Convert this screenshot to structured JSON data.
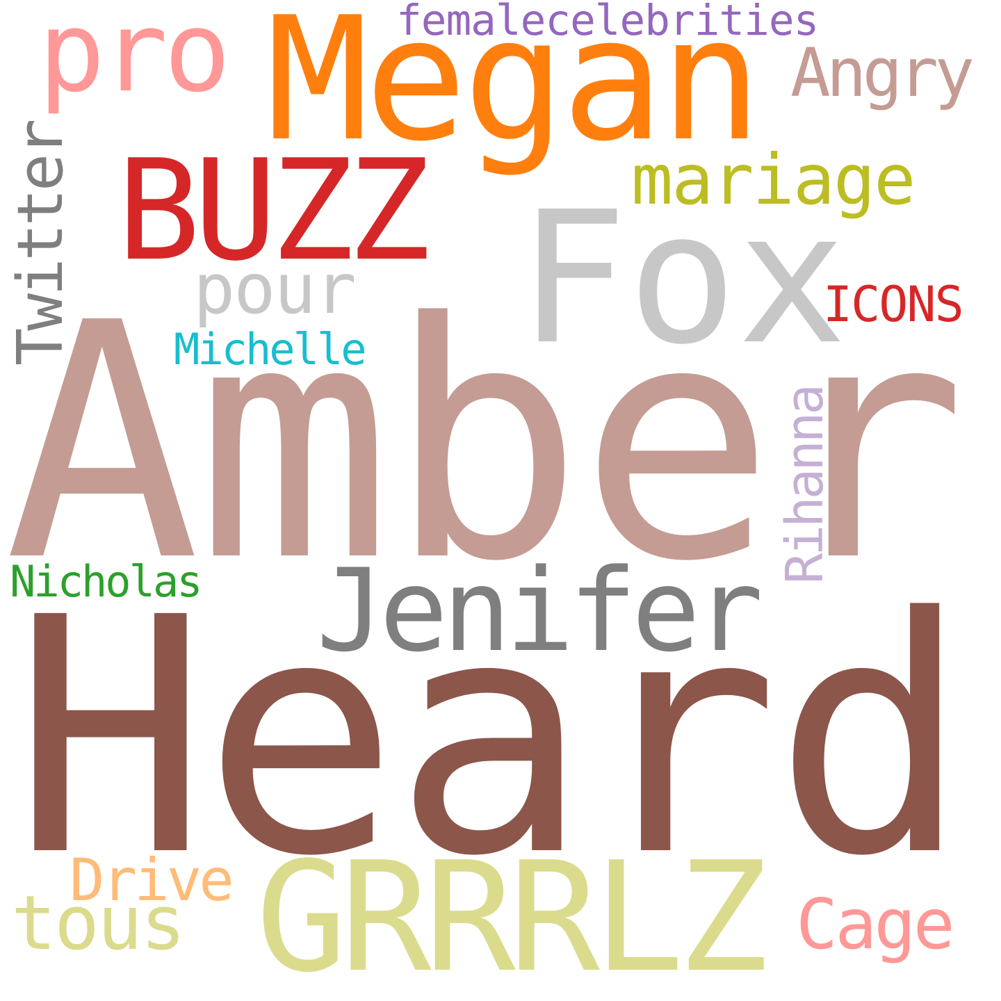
{
  "words": {
    "heard": {
      "text": "Heard",
      "color": "#8c564b"
    },
    "amber": {
      "text": "Amber",
      "color": "#c49c94"
    },
    "fox": {
      "text": "Fox",
      "color": "#c7c7c7"
    },
    "megan": {
      "text": "Megan",
      "color": "#ff7f0e"
    },
    "buzz": {
      "text": "BUZZ",
      "color": "#d62728"
    },
    "grrrlz": {
      "text": "GRRRLZ",
      "color": "#dbdb8d"
    },
    "jenifer": {
      "text": "Jenifer",
      "color": "#7f7f7f"
    },
    "pro": {
      "text": "pro",
      "color": "#ff9896"
    },
    "mariage": {
      "text": "mariage",
      "color": "#bcbd22"
    },
    "pour": {
      "text": "pour",
      "color": "#c7c7c7"
    },
    "twitter": {
      "text": "Twitter",
      "color": "#7f7f7f"
    },
    "angry": {
      "text": "Angry",
      "color": "#c49c94"
    },
    "femalecelebrities": {
      "text": "femalecelebrities",
      "color": "#9467bd"
    },
    "icons": {
      "text": "ICONS",
      "color": "#d62728"
    },
    "michelle": {
      "text": "Michelle",
      "color": "#17becf"
    },
    "rihanna": {
      "text": "Rihanna",
      "color": "#c5b0d5"
    },
    "nicholas": {
      "text": "Nicholas",
      "color": "#2ca02c"
    },
    "drive": {
      "text": "Drive",
      "color": "#ffbb78"
    },
    "tous": {
      "text": "tous",
      "color": "#dbdb8d"
    },
    "cage": {
      "text": "Cage",
      "color": "#ff9896"
    }
  }
}
